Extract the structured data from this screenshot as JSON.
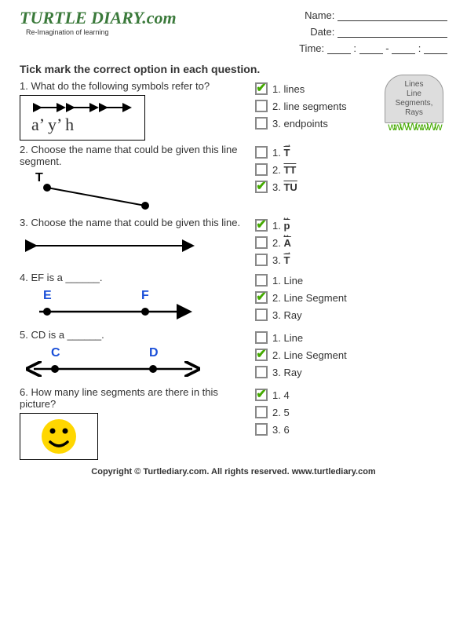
{
  "header": {
    "logo_text": "TURTLE DIARY",
    "logo_suffix": ".com",
    "tagline": "Re-Imagination of learning",
    "name_label": "Name:",
    "date_label": "Date:",
    "time_label": "Time:"
  },
  "instruction": "Tick mark the correct option in each question.",
  "badge": {
    "line1": "Lines",
    "line2": "Line",
    "line3": "Segments,",
    "line4": "Rays"
  },
  "questions": [
    {
      "num": "1.",
      "text": "What do the following symbols refer to?",
      "options": [
        {
          "checked": true,
          "num": "1.",
          "label": "lines"
        },
        {
          "checked": false,
          "num": "2.",
          "label": "line segments"
        },
        {
          "checked": false,
          "num": "3.",
          "label": "endpoints"
        }
      ],
      "figure": "symbols"
    },
    {
      "num": "2.",
      "text": "Choose the name that could be given this line segment.",
      "options": [
        {
          "checked": false,
          "num": "1.",
          "label": "T",
          "style": "ray"
        },
        {
          "checked": false,
          "num": "2.",
          "label": "TT",
          "style": "seg"
        },
        {
          "checked": true,
          "num": "3.",
          "label": "TU",
          "style": "seg"
        }
      ],
      "figure": "segment_t"
    },
    {
      "num": "3.",
      "text": "Choose the name that could be given this line.",
      "options": [
        {
          "checked": true,
          "num": "1.",
          "label": "p",
          "style": "line"
        },
        {
          "checked": false,
          "num": "2.",
          "label": "A",
          "style": "line"
        },
        {
          "checked": false,
          "num": "3.",
          "label": "T",
          "style": "ray"
        }
      ],
      "figure": "line"
    },
    {
      "num": "4.",
      "text": "EF is a ______.",
      "options": [
        {
          "checked": false,
          "num": "1.",
          "label": "Line"
        },
        {
          "checked": true,
          "num": "2.",
          "label": "Line Segment"
        },
        {
          "checked": false,
          "num": "3.",
          "label": "Ray"
        }
      ],
      "figure": "ef"
    },
    {
      "num": "5.",
      "text": "CD is a ______.",
      "options": [
        {
          "checked": false,
          "num": "1.",
          "label": "Line"
        },
        {
          "checked": true,
          "num": "2.",
          "label": "Line Segment"
        },
        {
          "checked": false,
          "num": "3.",
          "label": "Ray"
        }
      ],
      "figure": "cd"
    },
    {
      "num": "6.",
      "text": "How many line segments are there in this picture?",
      "options": [
        {
          "checked": true,
          "num": "1.",
          "label": "4"
        },
        {
          "checked": false,
          "num": "2.",
          "label": "5"
        },
        {
          "checked": false,
          "num": "3.",
          "label": "6"
        }
      ],
      "figure": "smiley"
    }
  ],
  "footer": "Copyright © Turtlediary.com. All rights reserved. www.turtlediary.com",
  "colors": {
    "check": "#44aa00",
    "logo": "#3B7A3B",
    "blue": "#1a4fd8",
    "yellow": "#ffd700"
  }
}
